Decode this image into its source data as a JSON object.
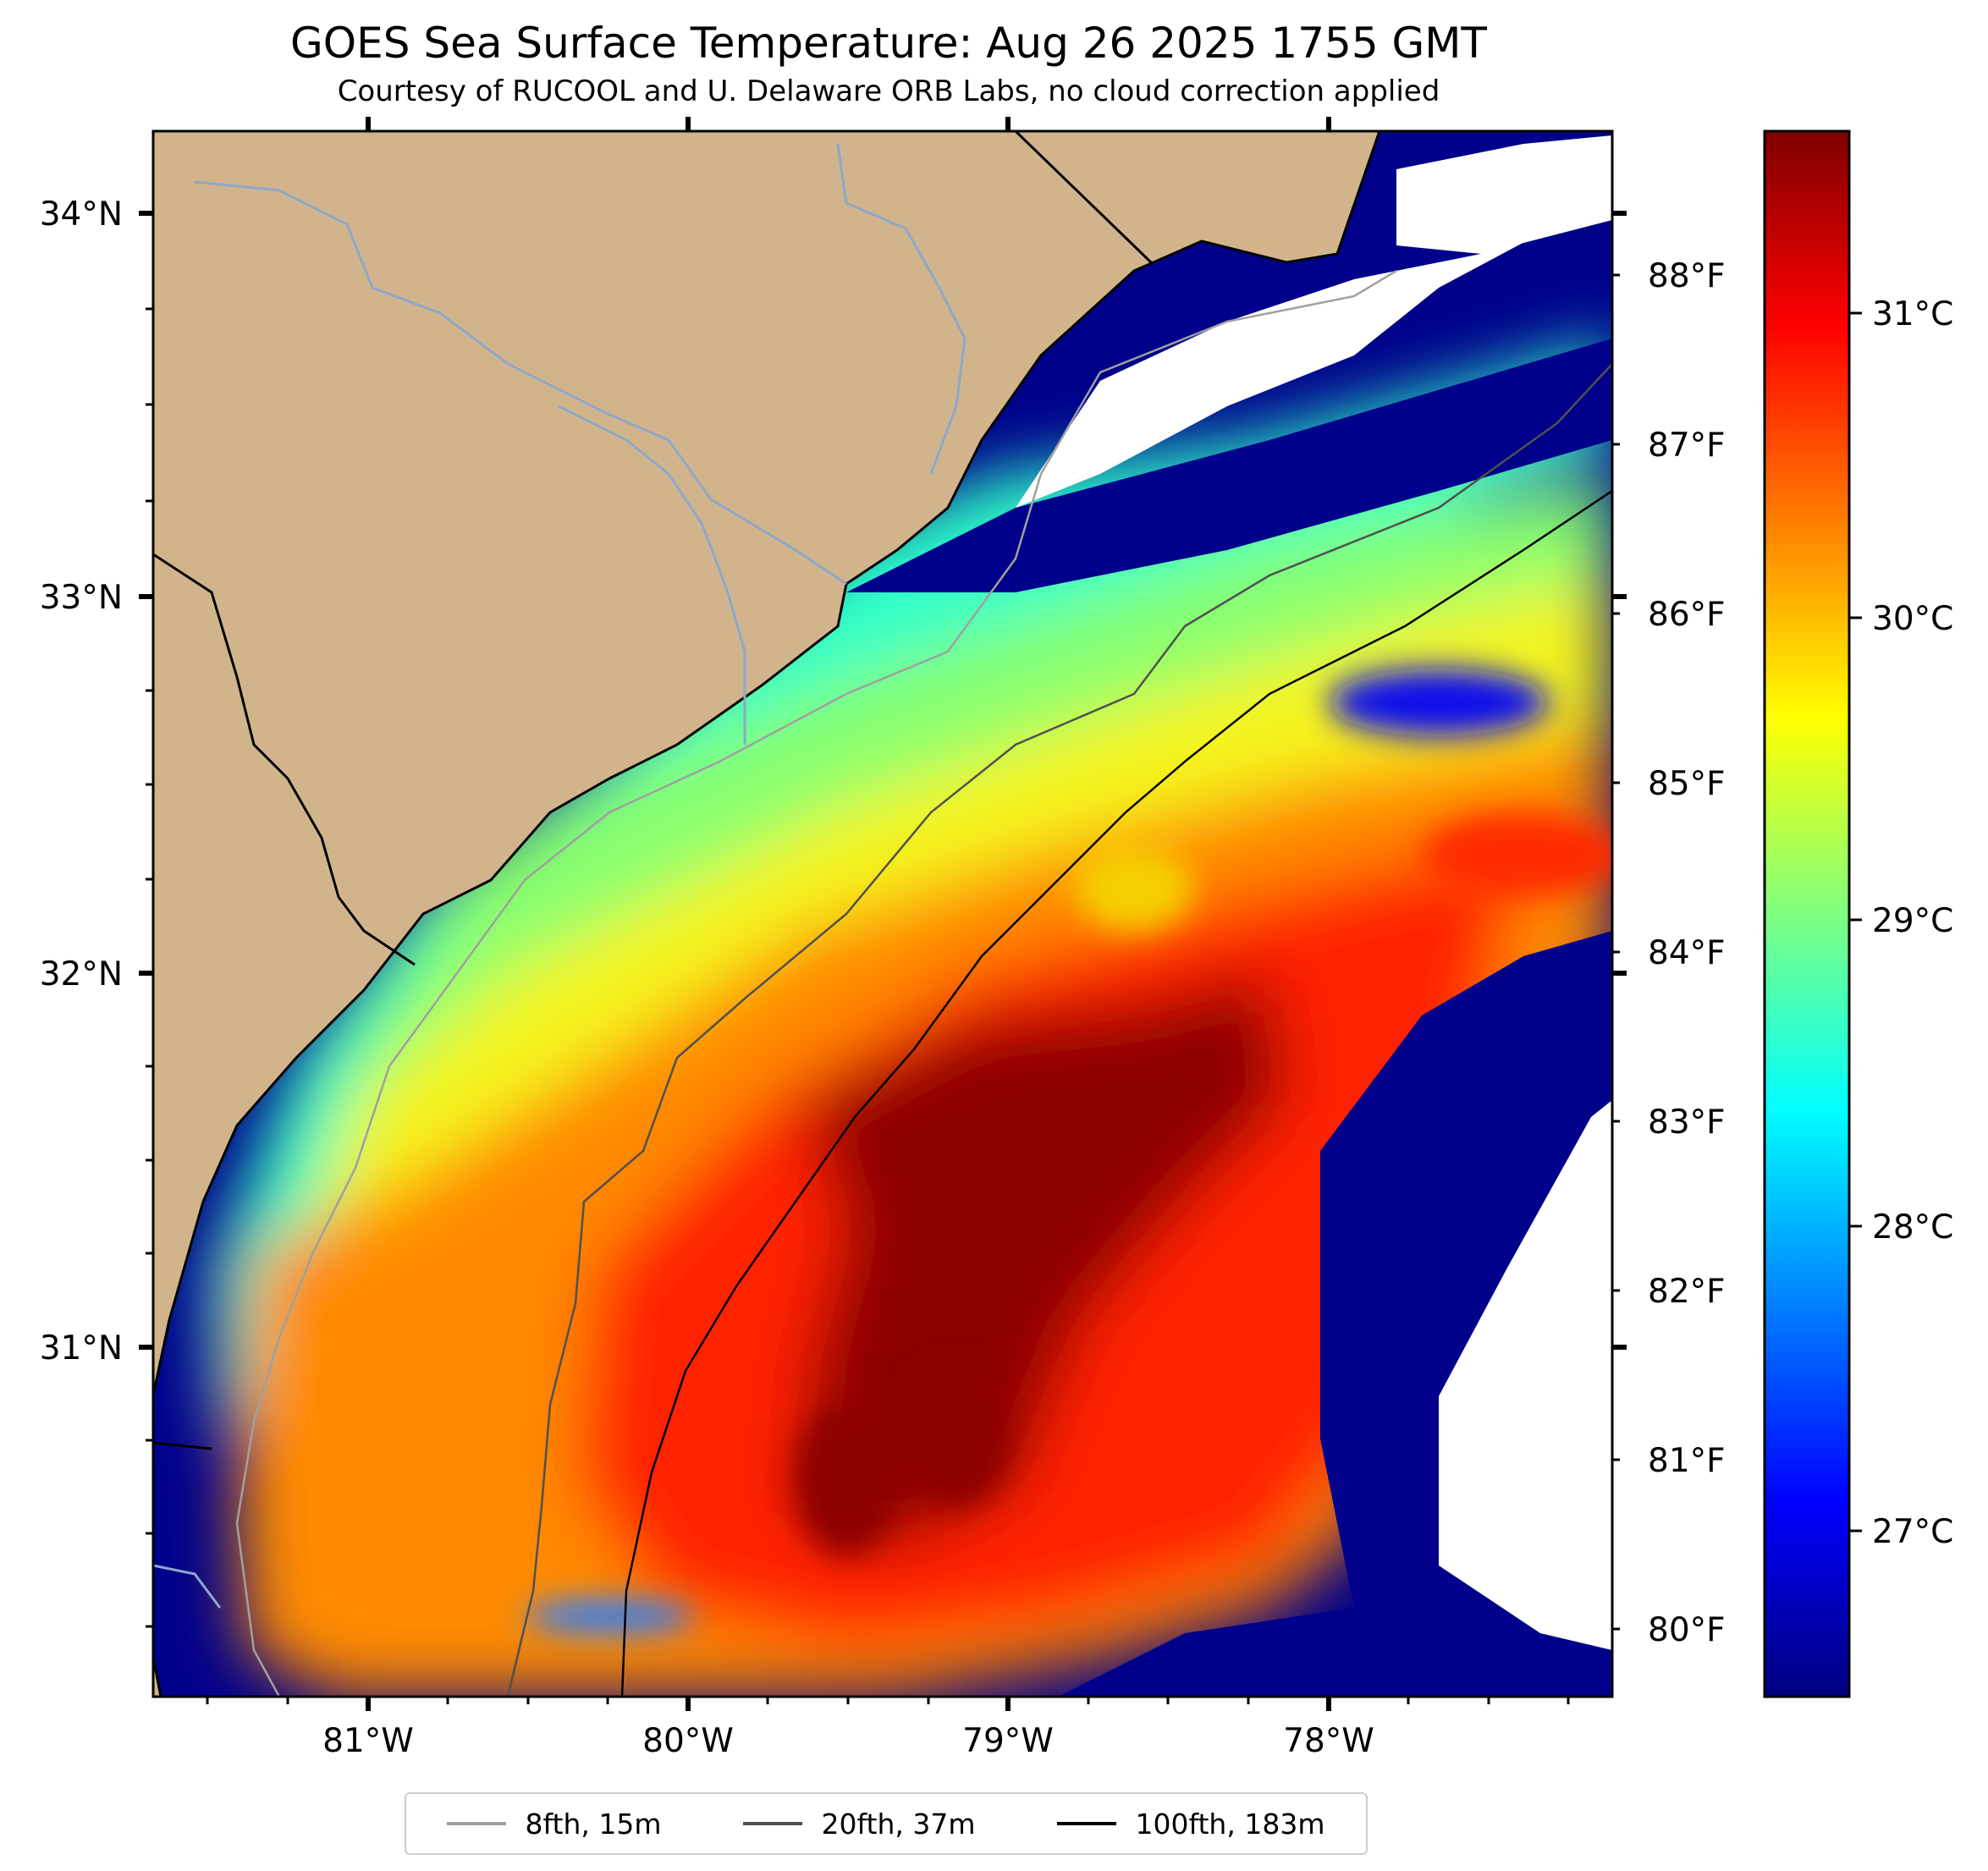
{
  "header": {
    "title": "GOES Sea Surface Temperature: Aug 26 2025 1755 GMT",
    "subtitle": "Courtesy of RUCOOL and U. Delaware ORB Labs, no cloud correction applied"
  },
  "axes": {
    "lon_labels": [
      "81°W",
      "80°W",
      "79°W",
      "78°W"
    ],
    "lat_labels": [
      "34°N",
      "33°N",
      "32°N",
      "31°N"
    ],
    "fahrenheit_labels": [
      "88°F",
      "87°F",
      "86°F",
      "85°F",
      "84°F",
      "83°F",
      "82°F",
      "81°F",
      "80°F"
    ]
  },
  "colorbar": {
    "labels": [
      "31°C",
      "30°C",
      "29°C",
      "28°C",
      "27°C"
    ],
    "colormap": "jet",
    "colors": [
      "#00007f",
      "#0000ff",
      "#007fff",
      "#00ffff",
      "#7fff7f",
      "#ffff00",
      "#ff7f00",
      "#ff0000",
      "#7f0000"
    ]
  },
  "map_colors": {
    "land": "#d2b48c",
    "cloud_mask": "#ffffff",
    "cold_water": "#00008b",
    "rivers": "#8fa8c8"
  },
  "legend": {
    "items": [
      {
        "label": "8fth, 15m",
        "color": "#a0a0a0"
      },
      {
        "label": "20fth, 37m",
        "color": "#505050"
      },
      {
        "label": "100fth, 183m",
        "color": "#000000"
      }
    ]
  }
}
